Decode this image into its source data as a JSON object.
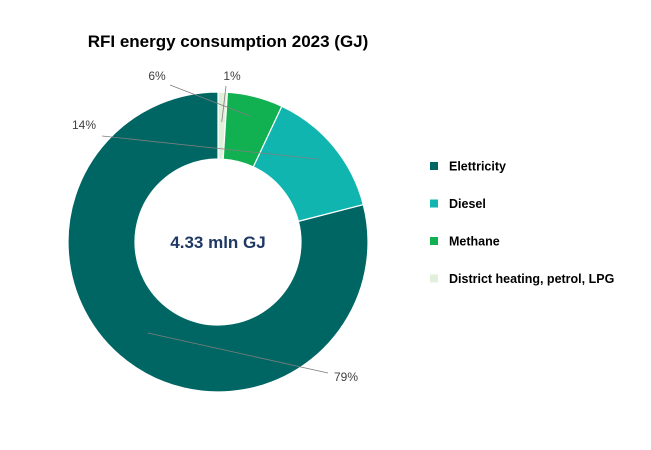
{
  "chart_data": {
    "type": "pie",
    "variant": "donut",
    "title": "RFI energy consumption 2023 (GJ)",
    "center_label": "4.33 mln GJ",
    "categories": [
      "Elettricity",
      "Diesel",
      "Methane",
      "District heating, petrol, LPG"
    ],
    "values": [
      79,
      14,
      6,
      1
    ],
    "data_labels": [
      "79%",
      "14%",
      "6%",
      "1%"
    ],
    "unit": "%",
    "colors": [
      "#006663",
      "#11b5b0",
      "#11b050",
      "#e2efda"
    ],
    "center_label_color": "#1f3864",
    "legend_position": "right"
  }
}
